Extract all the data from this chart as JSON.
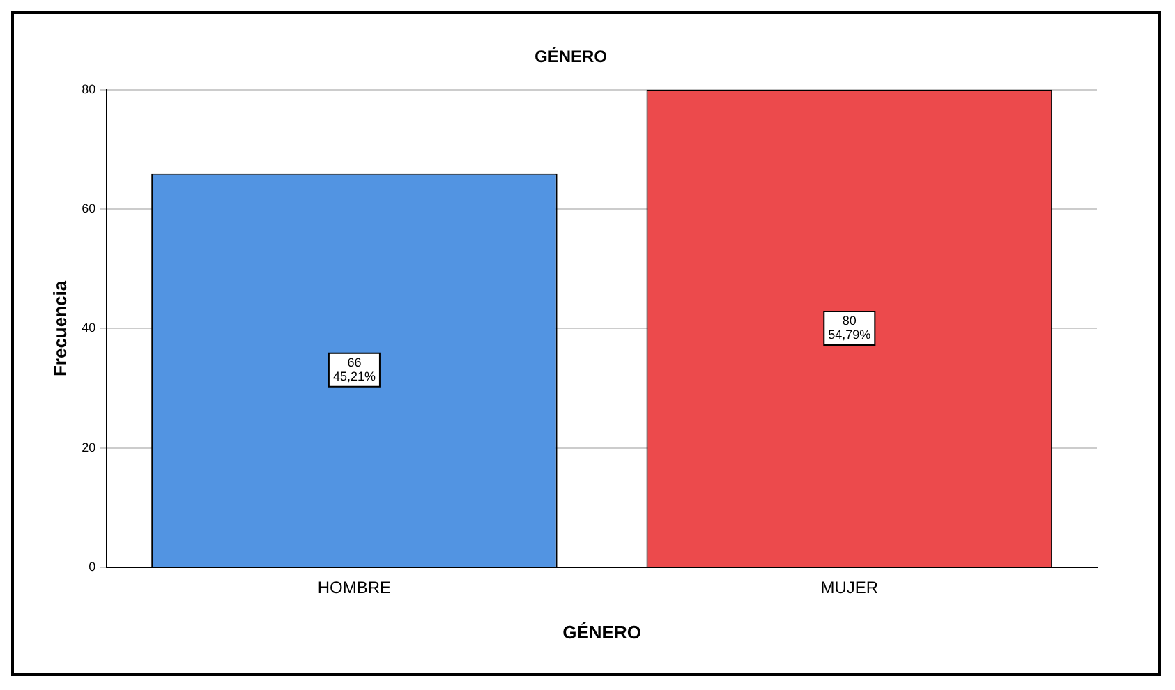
{
  "chart_data": {
    "type": "bar",
    "title": "GÉNERO",
    "xlabel": "GÉNERO",
    "ylabel": "Frecuencia",
    "categories": [
      "HOMBRE",
      "MUJER"
    ],
    "values": [
      66,
      80
    ],
    "colors": [
      "#5294e2",
      "#ec4a4c"
    ],
    "value_labels": [
      "66\n45,21%",
      "80\n54,79%"
    ],
    "ylim": [
      0,
      80
    ],
    "yticks": [
      0,
      20,
      40,
      60,
      80
    ],
    "grid": "y",
    "legend": false
  }
}
